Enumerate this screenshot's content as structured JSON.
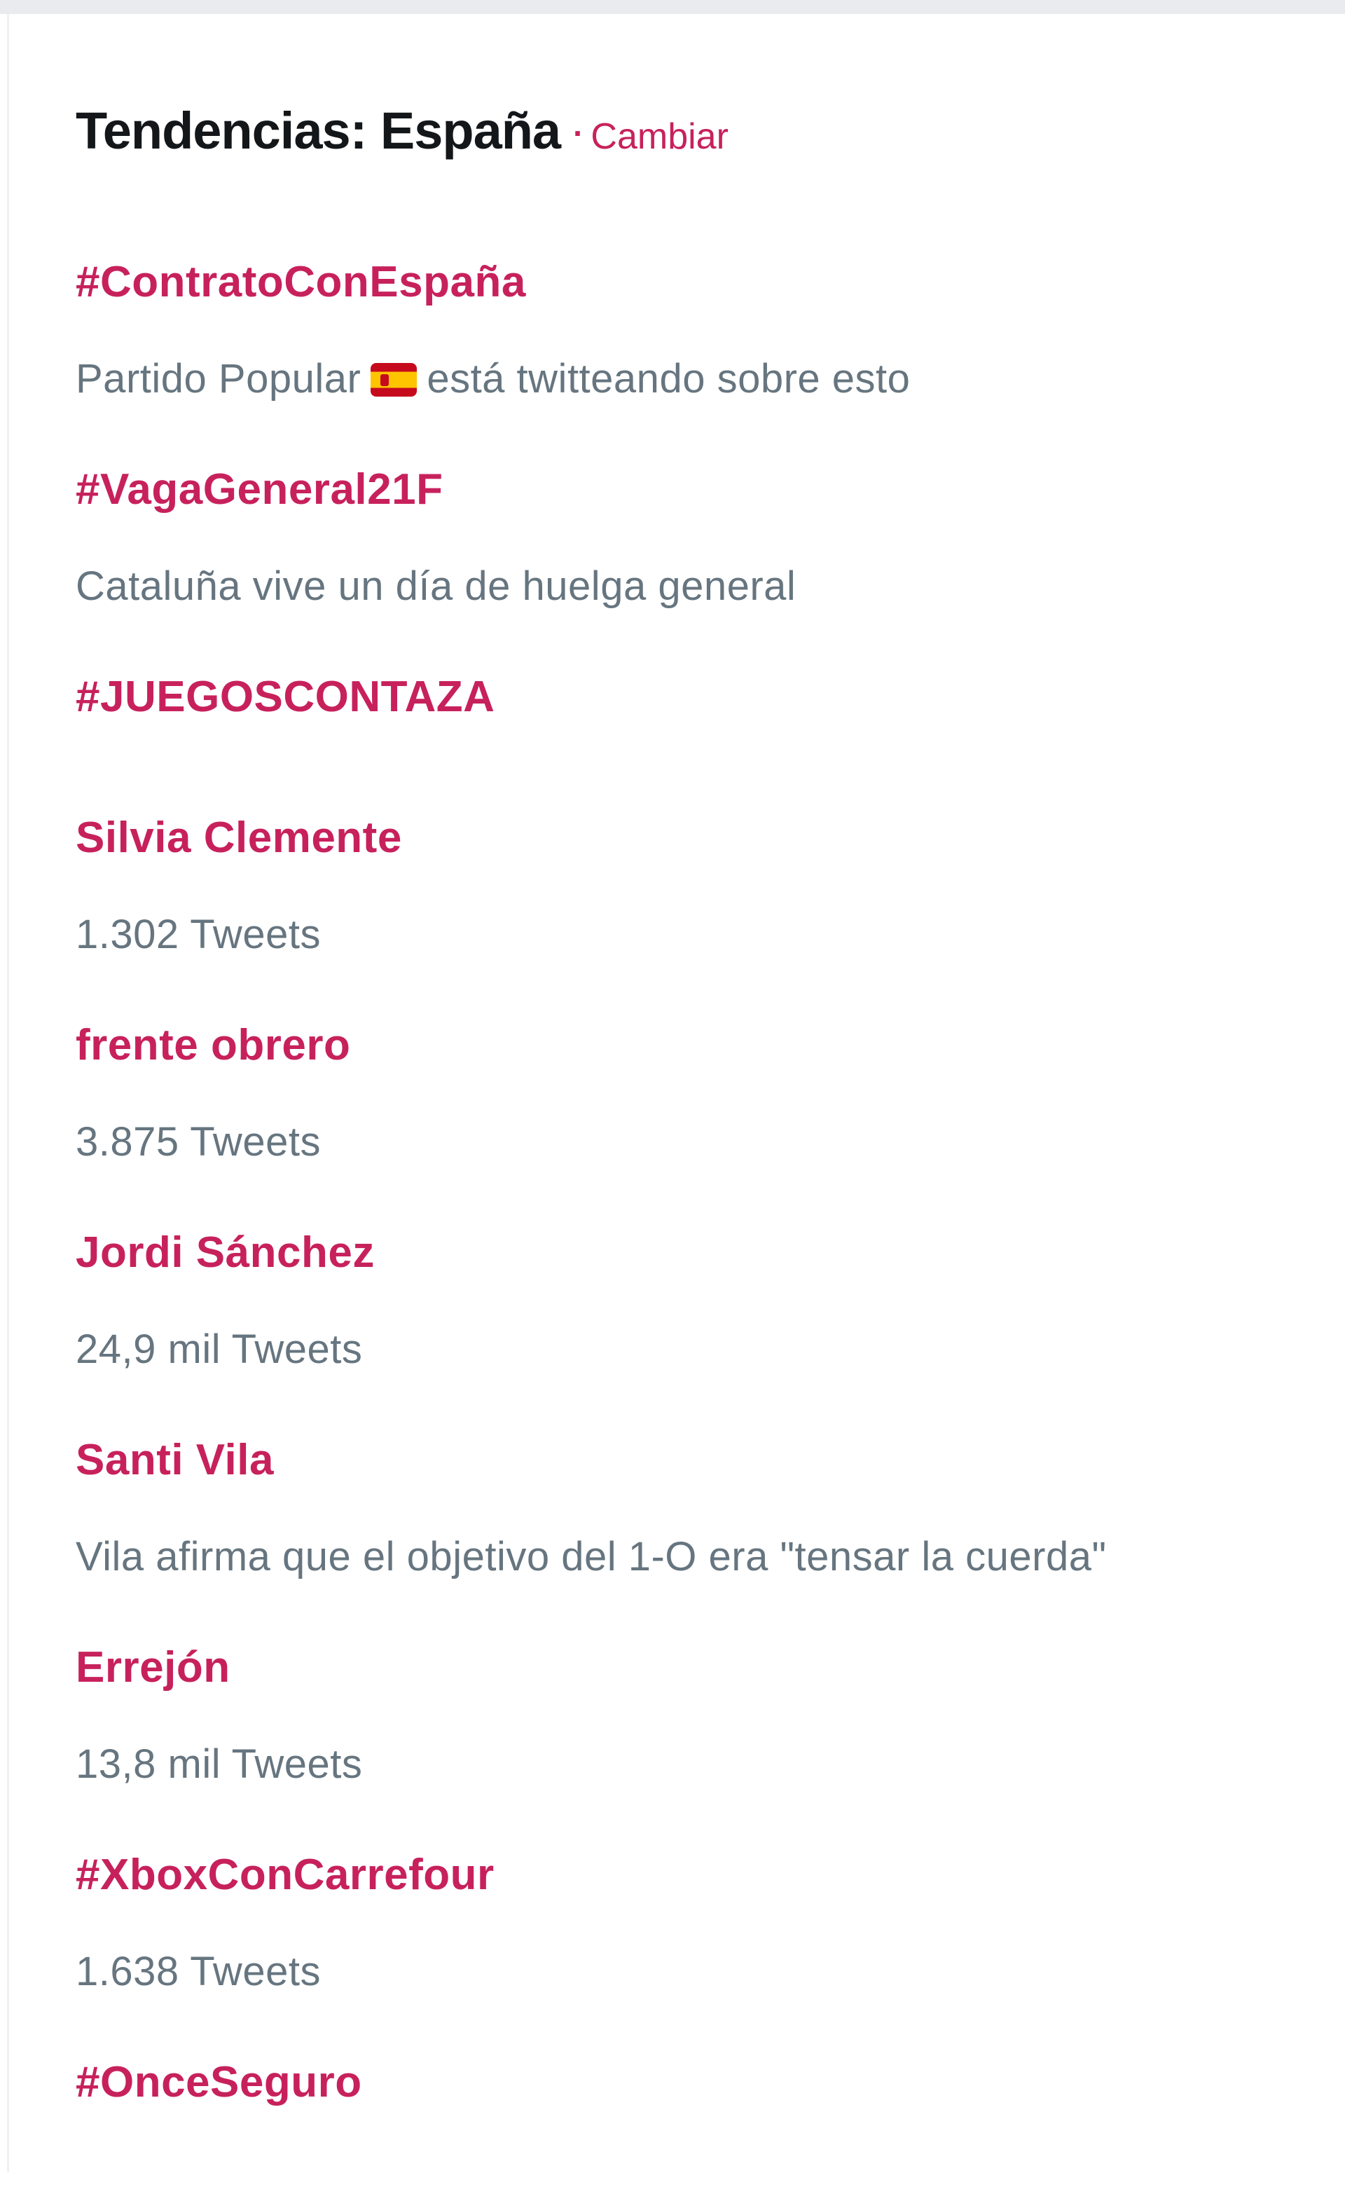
{
  "colors": {
    "accent": "#c7215c",
    "meta_gray": "#66757f",
    "title_black": "#14171a",
    "top_strip_gray": "#e9ebee",
    "flag_red": "#c60a1d",
    "flag_yellow": "#ffc400"
  },
  "header": {
    "title": "Tendencias: España",
    "separator": "·",
    "change_link": "Cambiar"
  },
  "trends": [
    {
      "name": "#ContratoConEspaña",
      "meta_before_flag": "Partido Popular",
      "flag_icon": "spain-flag-emoji",
      "meta_after_flag": "está twitteando sobre esto"
    },
    {
      "name": "#VagaGeneral21F",
      "meta": "Cataluña vive un día de huelga general"
    },
    {
      "name": "#JUEGOSCONTAZA"
    },
    {
      "name": "Silvia Clemente",
      "meta": "1.302 Tweets"
    },
    {
      "name": "frente obrero",
      "meta": "3.875 Tweets"
    },
    {
      "name": "Jordi Sánchez",
      "meta": "24,9 mil Tweets"
    },
    {
      "name": "Santi Vila",
      "meta": "Vila afirma que el objetivo del 1-O era \"tensar la cuerda\""
    },
    {
      "name": "Errejón",
      "meta": "13,8 mil Tweets"
    },
    {
      "name": "#XboxConCarrefour",
      "meta": "1.638 Tweets"
    },
    {
      "name": "#OnceSeguro"
    }
  ]
}
